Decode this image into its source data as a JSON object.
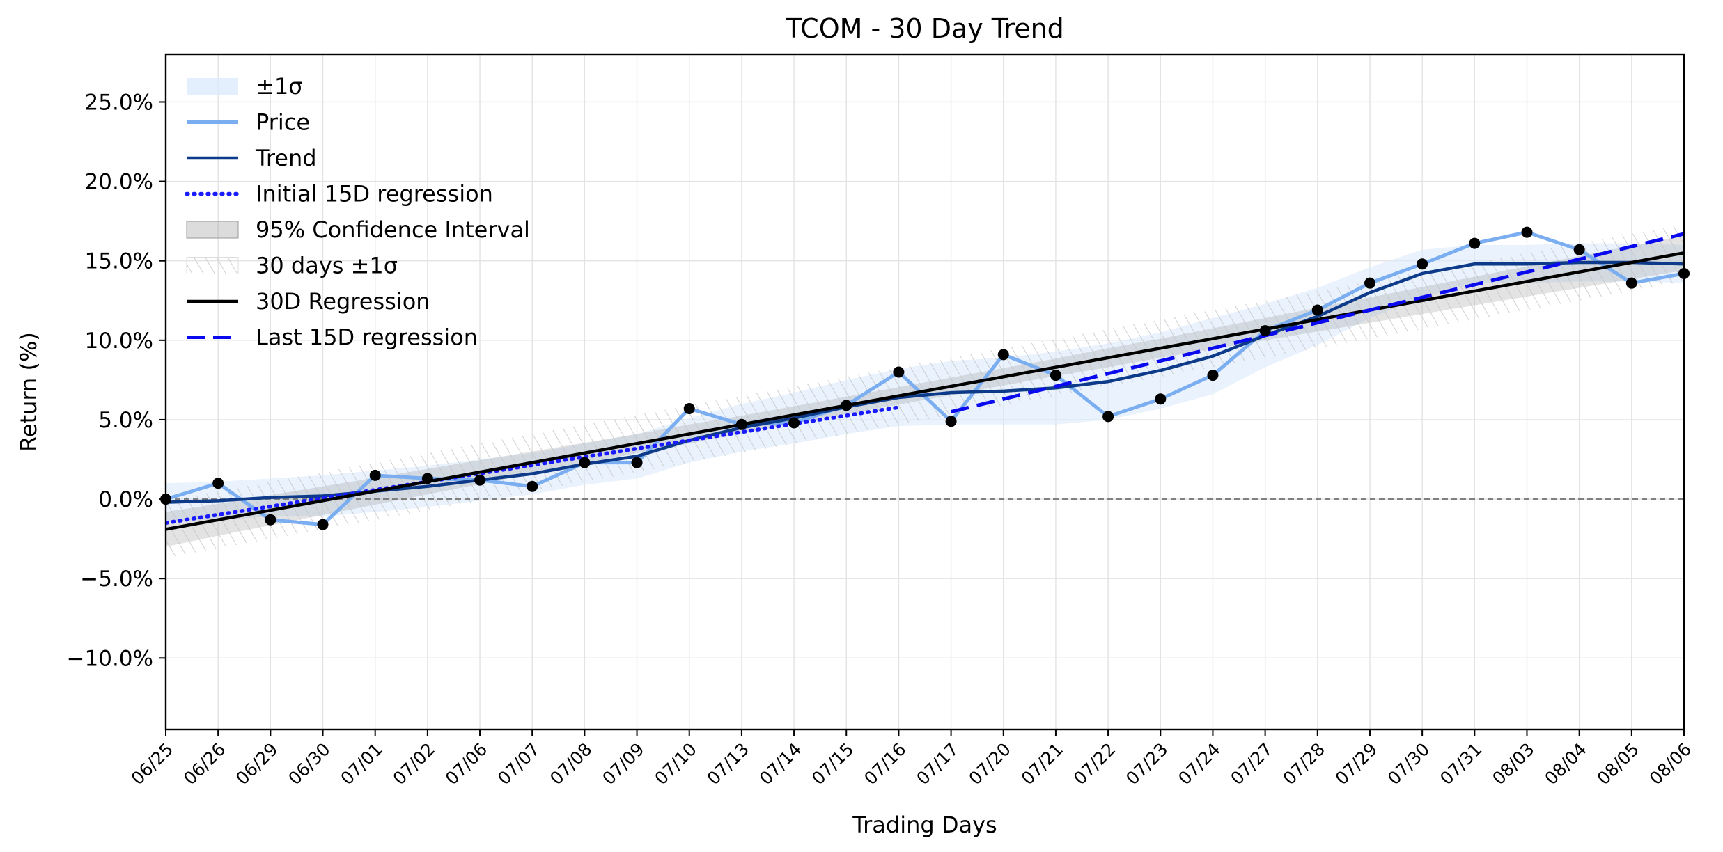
{
  "chart_data": {
    "type": "line",
    "title": "TCOM - 30 Day Trend",
    "xlabel": "Trading Days",
    "ylabel": "Return (%)",
    "ylim": [
      -14.5,
      28
    ],
    "yticks": [
      -10,
      -5,
      0,
      5,
      10,
      15,
      20,
      25
    ],
    "ytick_labels": [
      "−10.0%",
      "−5.0%",
      "0.0%",
      "5.0%",
      "10.0%",
      "15.0%",
      "20.0%",
      "25.0%"
    ],
    "grid": true,
    "legend_position": "top-left",
    "categories": [
      "06/25",
      "06/26",
      "06/29",
      "06/30",
      "07/01",
      "07/02",
      "07/06",
      "07/07",
      "07/08",
      "07/09",
      "07/10",
      "07/13",
      "07/14",
      "07/15",
      "07/16",
      "07/17",
      "07/20",
      "07/21",
      "07/22",
      "07/23",
      "07/24",
      "07/27",
      "07/28",
      "07/29",
      "07/30",
      "07/31",
      "08/03",
      "08/04",
      "08/05",
      "08/06"
    ],
    "series": [
      {
        "name": "Price",
        "color": "#7aaef0",
        "values": [
          0.0,
          1.0,
          -1.3,
          -1.6,
          1.5,
          1.3,
          1.2,
          0.8,
          2.3,
          2.3,
          5.7,
          4.7,
          4.8,
          5.9,
          8.0,
          4.9,
          9.1,
          7.8,
          5.2,
          6.3,
          7.8,
          10.6,
          11.9,
          13.6,
          14.8,
          16.1,
          16.8,
          15.7,
          13.6,
          14.2
        ]
      },
      {
        "name": "Trend",
        "color": "#0d3b8a",
        "values": [
          -0.2,
          -0.1,
          0.1,
          0.2,
          0.5,
          0.8,
          1.2,
          1.6,
          2.2,
          2.7,
          3.7,
          4.5,
          5.1,
          5.8,
          6.4,
          6.7,
          6.8,
          7.0,
          7.4,
          8.1,
          9.0,
          10.3,
          11.5,
          13.0,
          14.2,
          14.8,
          14.8,
          14.9,
          14.9,
          14.8
        ]
      },
      {
        "name": "Initial 15D regression",
        "color": "#1a1aff",
        "values": [
          -1.5,
          -0.98,
          -0.46,
          0.06,
          0.58,
          1.1,
          1.62,
          2.14,
          2.66,
          3.18,
          3.7,
          4.22,
          4.74,
          5.26,
          5.78,
          null,
          null,
          null,
          null,
          null,
          null,
          null,
          null,
          null,
          null,
          null,
          null,
          null,
          null,
          null
        ]
      },
      {
        "name": "30D Regression",
        "color": "#000000",
        "values": [
          -1.9,
          -1.3,
          -0.7,
          -0.1,
          0.5,
          1.1,
          1.7,
          2.3,
          2.9,
          3.5,
          4.1,
          4.7,
          5.3,
          5.9,
          6.5,
          7.1,
          7.7,
          8.3,
          8.9,
          9.5,
          10.1,
          10.7,
          11.3,
          11.9,
          12.5,
          13.1,
          13.7,
          14.3,
          14.9,
          15.5
        ]
      },
      {
        "name": "Last 15D regression",
        "color": "#0a0aee",
        "values": [
          null,
          null,
          null,
          null,
          null,
          null,
          null,
          null,
          null,
          null,
          null,
          null,
          null,
          null,
          null,
          5.5,
          6.3,
          7.1,
          7.9,
          8.7,
          9.5,
          10.3,
          11.1,
          11.9,
          12.7,
          13.5,
          14.3,
          15.1,
          15.9,
          16.7
        ]
      }
    ],
    "bands": [
      {
        "name": "±1σ",
        "color": "#dbeafc",
        "around": "Trend",
        "halfwidth": [
          1.2,
          1.2,
          1.2,
          1.3,
          1.3,
          1.3,
          1.3,
          1.3,
          1.3,
          1.4,
          1.4,
          1.5,
          1.6,
          1.7,
          1.8,
          2.0,
          2.1,
          2.3,
          2.4,
          2.4,
          2.4,
          2.0,
          1.8,
          1.6,
          1.5,
          1.2,
          1.2,
          1.2,
          1.2,
          1.2
        ]
      },
      {
        "name": "95% Confidence Interval",
        "color": "#9a9a9a",
        "around": "30D Regression",
        "halfwidth": [
          1.1,
          1.0,
          0.95,
          0.9,
          0.85,
          0.8,
          0.75,
          0.7,
          0.65,
          0.6,
          0.6,
          0.55,
          0.55,
          0.55,
          0.55,
          0.55,
          0.55,
          0.55,
          0.6,
          0.6,
          0.65,
          0.7,
          0.75,
          0.8,
          0.85,
          0.9,
          0.95,
          1.0,
          1.05,
          1.1
        ]
      },
      {
        "name": "30 days ±1σ",
        "color": "#bbbbbb",
        "around": "30D Regression",
        "halfwidth": [
          1.8,
          1.8,
          1.8,
          1.8,
          1.8,
          1.8,
          1.8,
          1.8,
          1.8,
          1.8,
          1.8,
          1.8,
          1.8,
          1.8,
          1.8,
          1.8,
          1.8,
          1.8,
          1.8,
          1.8,
          1.8,
          1.8,
          1.8,
          1.8,
          1.8,
          1.8,
          1.8,
          1.8,
          1.8,
          1.8
        ]
      }
    ],
    "legend": [
      "±1σ",
      "Price",
      "Trend",
      "Initial 15D regression",
      "95% Confidence Interval",
      "30 days ±1σ",
      "30D Regression",
      "Last 15D regression"
    ],
    "reference_line": {
      "y": 0,
      "color": "#808080",
      "style": "dashed"
    }
  }
}
